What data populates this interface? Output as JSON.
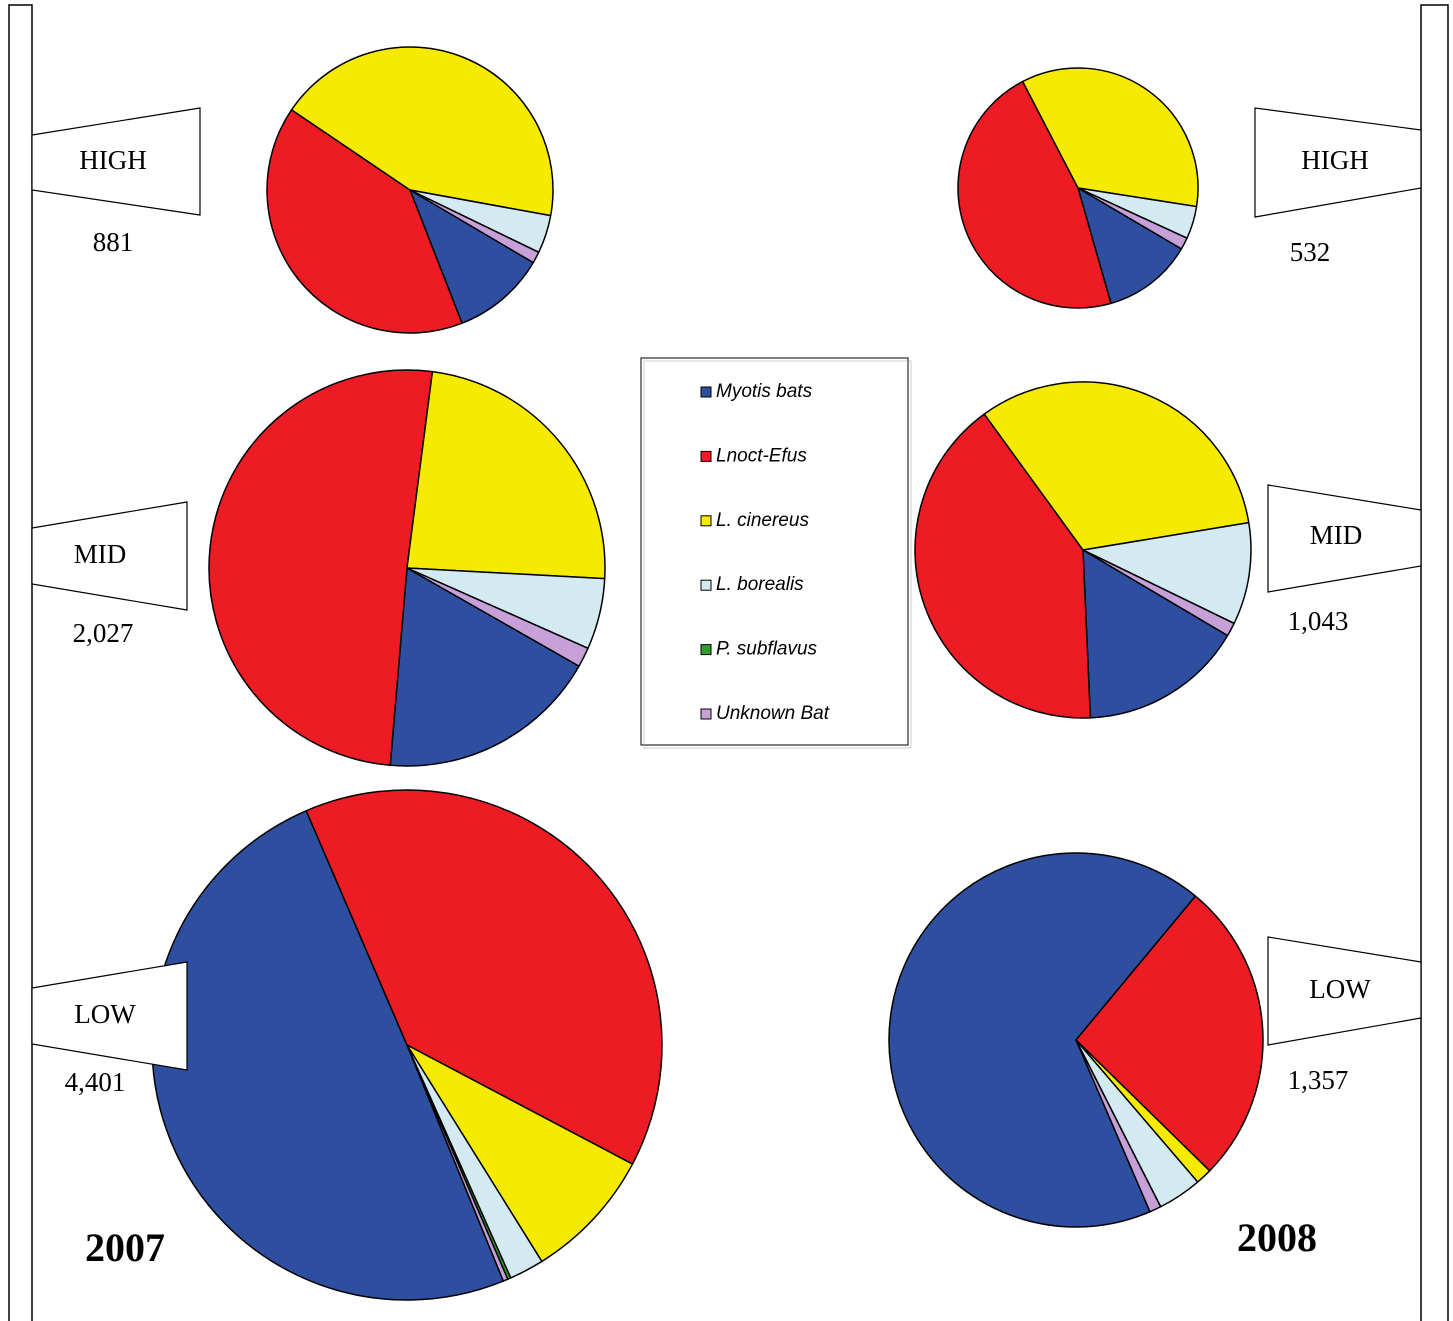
{
  "chart_data": [
    {
      "type": "pie",
      "label": "HIGH",
      "total": 881,
      "categories": [
        "Myotis bats",
        "Lnoct-Efus",
        "L. cinereus",
        "L. borealis",
        "P. subflavus",
        "Unknown Bat"
      ],
      "colors": [
        "#2e4fa0",
        "#ed1c24",
        "#f5ea00",
        "#d3eaf1",
        "#2ca02c",
        "#c8a0d8"
      ],
      "values": [
        10.6,
        40.4,
        43.4,
        4.3,
        0,
        1.3
      ],
      "start_angle": 120.5
    },
    {
      "type": "pie",
      "label": "MID",
      "total": {
        "value": 2027,
        "label": "2,027"
      },
      "categories": [
        "Myotis bats",
        "Lnoct-Efus",
        "L. cinereus",
        "L. borealis",
        "P. subflavus",
        "Unknown Bat"
      ],
      "colors": [
        "#2e4fa0",
        "#ed1c24",
        "#f5ea00",
        "#d3eaf1",
        "#2ca02c",
        "#c8a0d8"
      ],
      "values": [
        18.1,
        50.7,
        23.8,
        5.8,
        0,
        1.6
      ],
      "start_angle": 119.7
    },
    {
      "type": "pie",
      "label": "LOW",
      "total": {
        "value": 4401,
        "label": "4,401"
      },
      "annotation": "2007",
      "categories": [
        "Myotis bats",
        "Lnoct-Efus",
        "L. cinereus",
        "L. borealis",
        "P. subflavus",
        "Unknown Bat"
      ],
      "colors": [
        "#2e4fa0",
        "#ed1c24",
        "#f5ea00",
        "#d3eaf1",
        "#2ca02c",
        "#c8a0d8"
      ],
      "values": [
        49.7,
        39.2,
        8.4,
        2.2,
        0.2,
        0.3
      ],
      "start_angle": 157.8
    },
    {
      "type": "pie",
      "label": "HIGH",
      "total": 532,
      "categories": [
        "Myotis bats",
        "Lnoct-Efus",
        "L. cinereus",
        "L. borealis",
        "P. subflavus",
        "Unknown Bat"
      ],
      "colors": [
        "#2e4fa0",
        "#ed1c24",
        "#f5ea00",
        "#d3eaf1",
        "#2ca02c",
        "#c8a0d8"
      ],
      "values": [
        12.1,
        46.8,
        35.1,
        4.4,
        0,
        1.6
      ],
      "start_angle": 120.5
    },
    {
      "type": "pie",
      "label": "MID",
      "total": {
        "value": 1043,
        "label": "1,043"
      },
      "categories": [
        "Myotis bats",
        "Lnoct-Efus",
        "L. cinereus",
        "L. borealis",
        "P. subflavus",
        "Unknown Bat"
      ],
      "colors": [
        "#2e4fa0",
        "#ed1c24",
        "#f5ea00",
        "#d3eaf1",
        "#2ca02c",
        "#c8a0d8"
      ],
      "values": [
        15.8,
        40.7,
        32.4,
        9.8,
        0,
        1.3
      ],
      "start_angle": 120.6
    },
    {
      "type": "pie",
      "label": "LOW",
      "total": {
        "value": 1357,
        "label": "1,357"
      },
      "annotation": "2008",
      "categories": [
        "Myotis bats",
        "Lnoct-Efus",
        "L. cinereus",
        "L. borealis",
        "P. subflavus",
        "Unknown Bat"
      ],
      "colors": [
        "#2e4fa0",
        "#ed1c24",
        "#f5ea00",
        "#d3eaf1",
        "#2ca02c",
        "#c8a0d8"
      ],
      "values": [
        67.5,
        26.3,
        1.4,
        3.8,
        0,
        1.0
      ],
      "start_angle": 156.7
    }
  ]
}
